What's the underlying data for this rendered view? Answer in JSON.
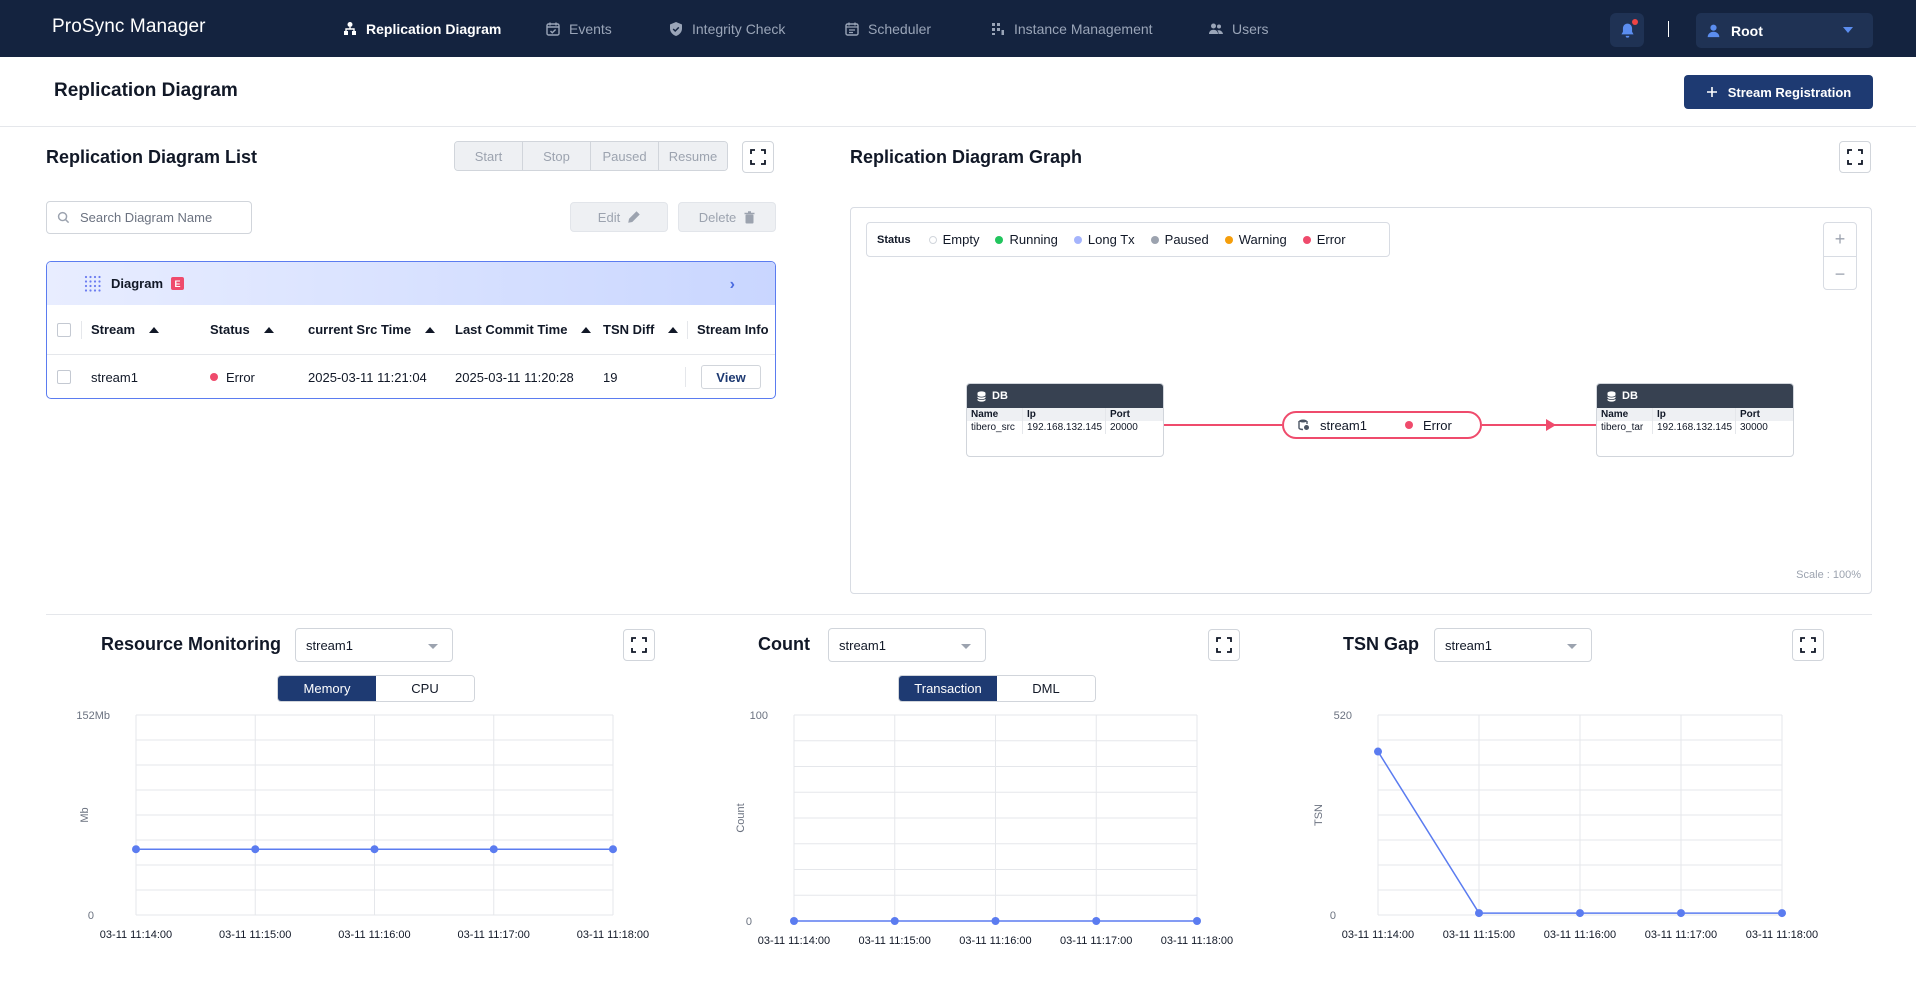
{
  "app": {
    "brand": "ProSync Manager"
  },
  "nav": [
    {
      "label": "Replication Diagram",
      "icon": "diagram-icon",
      "active": true
    },
    {
      "label": "Events",
      "icon": "calendar-check-icon"
    },
    {
      "label": "Integrity Check",
      "icon": "shield-check-icon"
    },
    {
      "label": "Scheduler",
      "icon": "calendar-icon"
    },
    {
      "label": "Instance Management",
      "icon": "grid-icon"
    },
    {
      "label": "Users",
      "icon": "users-icon"
    }
  ],
  "user": {
    "name": "Root"
  },
  "page": {
    "title": "Replication Diagram",
    "primary_button": "Stream Registration"
  },
  "list": {
    "title": "Replication Diagram List",
    "controls": [
      "Start",
      "Stop",
      "Paused",
      "Resume"
    ],
    "search_placeholder": "Search Diagram Name",
    "edit_label": "Edit",
    "delete_label": "Delete",
    "diagram_label": "Diagram",
    "diagram_badge": "E",
    "columns": [
      "Stream",
      "Status",
      "current Src Time",
      "Last Commit Time",
      "TSN Diff",
      "Stream Info"
    ],
    "rows": [
      {
        "stream": "stream1",
        "status": "Error",
        "src_time": "2025-03-11 11:21:04",
        "commit_time": "2025-03-11 11:20:28",
        "tsn_diff": "19",
        "info": "View"
      }
    ]
  },
  "graph": {
    "title": "Replication Diagram Graph",
    "legend_title": "Status",
    "legend": [
      {
        "label": "Empty",
        "color": "#ffffff"
      },
      {
        "label": "Running",
        "color": "#22c55e"
      },
      {
        "label": "Long Tx",
        "color": "#a5b4fc"
      },
      {
        "label": "Paused",
        "color": "#9ca3af"
      },
      {
        "label": "Warning",
        "color": "#f59e0b"
      },
      {
        "label": "Error",
        "color": "#ef4b6c"
      }
    ],
    "zoom_in": "+",
    "zoom_out": "−",
    "scale": "Scale : 100%",
    "source": {
      "head": "DB",
      "cols": [
        "Name",
        "Ip",
        "Port"
      ],
      "values": [
        "tibero_src",
        "192.168.132.145",
        "20000"
      ]
    },
    "target": {
      "head": "DB",
      "cols": [
        "Name",
        "Ip",
        "Port"
      ],
      "values": [
        "tibero_tar",
        "192.168.132.145",
        "30000"
      ]
    },
    "stream": {
      "name": "stream1",
      "status": "Error"
    }
  },
  "monitors": {
    "resource": {
      "title": "Resource Monitoring",
      "select": "stream1",
      "toggle": [
        "Memory",
        "CPU"
      ],
      "active": 0
    },
    "count": {
      "title": "Count",
      "select": "stream1",
      "toggle": [
        "Transaction",
        "DML"
      ],
      "active": 0
    },
    "tsn": {
      "title": "TSN Gap",
      "select": "stream1"
    }
  },
  "chart_data": [
    {
      "type": "line",
      "ylabel": "Mb",
      "ylim": [
        0,
        152
      ],
      "ytick_labels": [
        "152Mb",
        "0"
      ],
      "x": [
        "03-11 11:14:00",
        "03-11 11:15:00",
        "03-11 11:16:00",
        "03-11 11:17:00",
        "03-11 11:18:00"
      ],
      "series": [
        {
          "values": [
            50,
            50,
            50,
            50,
            50
          ]
        }
      ],
      "color": "#5b7cf0",
      "grid": true
    },
    {
      "type": "line",
      "ylabel": "Count",
      "ylim": [
        0,
        100
      ],
      "ytick_labels": [
        "100",
        "0"
      ],
      "x": [
        "03-11 11:14:00",
        "03-11 11:15:00",
        "03-11 11:16:00",
        "03-11 11:17:00",
        "03-11 11:18:00"
      ],
      "series": [
        {
          "values": [
            0,
            0,
            0,
            0,
            0
          ]
        }
      ],
      "color": "#5b7cf0",
      "grid": true
    },
    {
      "type": "line",
      "ylabel": "TSN",
      "ylim": [
        0,
        520
      ],
      "ytick_labels": [
        "520",
        "0"
      ],
      "x": [
        "03-11 11:14:00",
        "03-11 11:15:00",
        "03-11 11:16:00",
        "03-11 11:17:00",
        "03-11 11:18:00"
      ],
      "series": [
        {
          "values": [
            425,
            5,
            5,
            5,
            5
          ]
        }
      ],
      "color": "#5b7cf0",
      "grid": true
    }
  ]
}
